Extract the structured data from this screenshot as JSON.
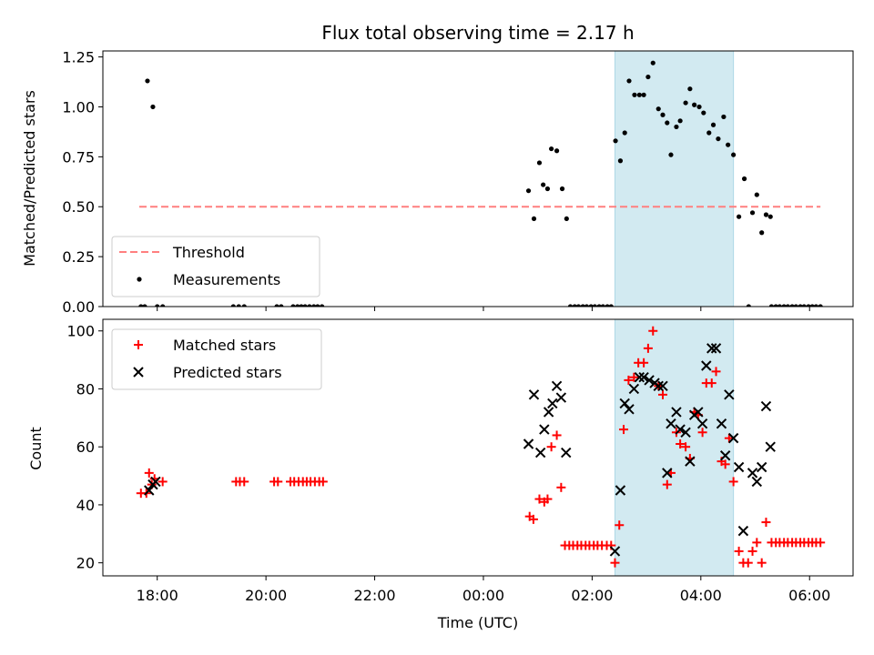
{
  "chart_data": [
    {
      "type": "scatter",
      "title": "Flux total observing time = 2.17 h",
      "xlabel": "",
      "ylabel": "Matched/Predicted stars",
      "xlim_hours": [
        17.0,
        30.8
      ],
      "ylim": [
        0,
        1.28
      ],
      "yticks": [
        "0.00",
        "0.25",
        "0.50",
        "0.75",
        "1.00",
        "1.25"
      ],
      "ytick_values": [
        0,
        0.25,
        0.5,
        0.75,
        1.0,
        1.25
      ],
      "highlight_span_hours": [
        26.42,
        28.6
      ],
      "highlight_color": "#add8e6",
      "legend_position": "lower left",
      "threshold": {
        "name": "Threshold",
        "value": 0.5,
        "x_range_hours": [
          17.67,
          30.2
        ],
        "color": "#ff7f7f",
        "style": "dashed"
      },
      "series": [
        {
          "name": "Measurements",
          "color": "#000000",
          "marker": "dot",
          "points": [
            [
              17.7,
              0
            ],
            [
              17.77,
              0
            ],
            [
              17.82,
              1.13
            ],
            [
              17.92,
              1.0
            ],
            [
              18.0,
              0
            ],
            [
              18.1,
              0
            ],
            [
              19.4,
              0
            ],
            [
              19.5,
              0
            ],
            [
              19.6,
              0
            ],
            [
              20.2,
              0
            ],
            [
              20.28,
              0
            ],
            [
              20.5,
              0
            ],
            [
              20.58,
              0
            ],
            [
              20.65,
              0
            ],
            [
              20.72,
              0
            ],
            [
              20.8,
              0
            ],
            [
              20.88,
              0
            ],
            [
              20.95,
              0
            ],
            [
              21.03,
              0
            ],
            [
              24.83,
              0.58
            ],
            [
              24.93,
              0.44
            ],
            [
              25.03,
              0.72
            ],
            [
              25.1,
              0.61
            ],
            [
              25.18,
              0.59
            ],
            [
              25.25,
              0.79
            ],
            [
              25.35,
              0.78
            ],
            [
              25.45,
              0.59
            ],
            [
              25.53,
              0.44
            ],
            [
              25.6,
              0
            ],
            [
              25.68,
              0
            ],
            [
              25.75,
              0
            ],
            [
              25.83,
              0
            ],
            [
              25.9,
              0
            ],
            [
              25.98,
              0
            ],
            [
              26.05,
              0
            ],
            [
              26.13,
              0
            ],
            [
              26.2,
              0
            ],
            [
              26.28,
              0
            ],
            [
              26.35,
              0
            ],
            [
              26.43,
              0.83
            ],
            [
              26.52,
              0.73
            ],
            [
              26.6,
              0.87
            ],
            [
              26.68,
              1.13
            ],
            [
              26.78,
              1.06
            ],
            [
              26.87,
              1.06
            ],
            [
              26.95,
              1.06
            ],
            [
              27.03,
              1.15
            ],
            [
              27.12,
              1.22
            ],
            [
              27.22,
              0.99
            ],
            [
              27.3,
              0.96
            ],
            [
              27.38,
              0.92
            ],
            [
              27.45,
              0.76
            ],
            [
              27.55,
              0.9
            ],
            [
              27.62,
              0.93
            ],
            [
              27.72,
              1.02
            ],
            [
              27.8,
              1.09
            ],
            [
              27.88,
              1.01
            ],
            [
              27.97,
              1.0
            ],
            [
              28.05,
              0.97
            ],
            [
              28.15,
              0.87
            ],
            [
              28.23,
              0.91
            ],
            [
              28.32,
              0.84
            ],
            [
              28.42,
              0.95
            ],
            [
              28.5,
              0.81
            ],
            [
              28.6,
              0.76
            ],
            [
              28.7,
              0.45
            ],
            [
              28.8,
              0.64
            ],
            [
              28.88,
              0
            ],
            [
              28.95,
              0.47
            ],
            [
              29.03,
              0.56
            ],
            [
              29.12,
              0.37
            ],
            [
              29.2,
              0.46
            ],
            [
              29.28,
              0.45
            ],
            [
              29.3,
              0
            ],
            [
              29.38,
              0
            ],
            [
              29.45,
              0
            ],
            [
              29.53,
              0
            ],
            [
              29.6,
              0
            ],
            [
              29.68,
              0
            ],
            [
              29.75,
              0
            ],
            [
              29.83,
              0
            ],
            [
              29.9,
              0
            ],
            [
              29.98,
              0
            ],
            [
              30.05,
              0
            ],
            [
              30.12,
              0
            ],
            [
              30.2,
              0
            ]
          ]
        }
      ],
      "legend": [
        "Threshold",
        "Measurements"
      ]
    },
    {
      "type": "scatter",
      "title": "",
      "xlabel": "Time (UTC)",
      "ylabel": "Count",
      "xlim_hours": [
        17.0,
        30.8
      ],
      "ylim": [
        15.5,
        104
      ],
      "yticks": [
        "20",
        "40",
        "60",
        "80",
        "100"
      ],
      "ytick_values": [
        20,
        40,
        60,
        80,
        100
      ],
      "xticks": [
        "18:00",
        "20:00",
        "22:00",
        "00:00",
        "02:00",
        "04:00",
        "06:00"
      ],
      "xtick_hours": [
        18,
        20,
        22,
        24,
        26,
        28,
        30
      ],
      "highlight_span_hours": [
        26.42,
        28.6
      ],
      "highlight_color": "#add8e6",
      "legend_position": "upper left",
      "series": [
        {
          "name": "Matched stars",
          "color": "#ff0000",
          "marker": "plus",
          "points": [
            [
              17.7,
              44
            ],
            [
              17.8,
              44
            ],
            [
              17.85,
              51
            ],
            [
              17.9,
              47
            ],
            [
              17.95,
              49
            ],
            [
              18.1,
              48
            ],
            [
              19.45,
              48
            ],
            [
              19.52,
              48
            ],
            [
              19.6,
              48
            ],
            [
              20.15,
              48
            ],
            [
              20.22,
              48
            ],
            [
              20.45,
              48
            ],
            [
              20.52,
              48
            ],
            [
              20.6,
              48
            ],
            [
              20.68,
              48
            ],
            [
              20.75,
              48
            ],
            [
              20.82,
              48
            ],
            [
              20.9,
              48
            ],
            [
              20.98,
              48
            ],
            [
              21.05,
              48
            ],
            [
              24.85,
              36
            ],
            [
              24.92,
              35
            ],
            [
              25.03,
              42
            ],
            [
              25.12,
              41
            ],
            [
              25.18,
              42
            ],
            [
              25.25,
              60
            ],
            [
              25.35,
              64
            ],
            [
              25.43,
              46
            ],
            [
              25.5,
              26
            ],
            [
              25.58,
              26
            ],
            [
              25.65,
              26
            ],
            [
              25.73,
              26
            ],
            [
              25.8,
              26
            ],
            [
              25.88,
              26
            ],
            [
              25.95,
              26
            ],
            [
              26.03,
              26
            ],
            [
              26.1,
              26
            ],
            [
              26.18,
              26
            ],
            [
              26.27,
              26
            ],
            [
              26.35,
              26
            ],
            [
              26.42,
              20
            ],
            [
              26.5,
              33
            ],
            [
              26.58,
              66
            ],
            [
              26.67,
              83
            ],
            [
              26.77,
              84
            ],
            [
              26.85,
              89
            ],
            [
              26.95,
              89
            ],
            [
              27.03,
              94
            ],
            [
              27.12,
              100
            ],
            [
              27.22,
              81
            ],
            [
              27.3,
              78
            ],
            [
              27.38,
              47
            ],
            [
              27.45,
              51
            ],
            [
              27.55,
              65
            ],
            [
              27.62,
              61
            ],
            [
              27.72,
              60
            ],
            [
              27.8,
              56
            ],
            [
              27.88,
              72
            ],
            [
              27.95,
              71
            ],
            [
              28.03,
              65
            ],
            [
              28.1,
              82
            ],
            [
              28.2,
              82
            ],
            [
              28.28,
              86
            ],
            [
              28.38,
              55
            ],
            [
              28.45,
              54
            ],
            [
              28.52,
              63
            ],
            [
              28.6,
              48
            ],
            [
              28.7,
              24
            ],
            [
              28.78,
              20
            ],
            [
              28.87,
              20
            ],
            [
              28.95,
              24
            ],
            [
              29.03,
              27
            ],
            [
              29.12,
              20
            ],
            [
              29.2,
              34
            ],
            [
              29.3,
              27
            ],
            [
              29.38,
              27
            ],
            [
              29.45,
              27
            ],
            [
              29.53,
              27
            ],
            [
              29.6,
              27
            ],
            [
              29.68,
              27
            ],
            [
              29.75,
              27
            ],
            [
              29.83,
              27
            ],
            [
              29.9,
              27
            ],
            [
              29.98,
              27
            ],
            [
              30.05,
              27
            ],
            [
              30.12,
              27
            ],
            [
              30.2,
              27
            ]
          ]
        },
        {
          "name": "Predicted stars",
          "color": "#000000",
          "marker": "x",
          "points": [
            [
              17.85,
              45
            ],
            [
              17.92,
              47
            ],
            [
              17.97,
              48
            ],
            [
              24.83,
              61
            ],
            [
              24.93,
              78
            ],
            [
              25.05,
              58
            ],
            [
              25.12,
              66
            ],
            [
              25.2,
              72
            ],
            [
              25.27,
              75
            ],
            [
              25.35,
              81
            ],
            [
              25.43,
              77
            ],
            [
              25.52,
              58
            ],
            [
              26.42,
              24
            ],
            [
              26.52,
              45
            ],
            [
              26.6,
              75
            ],
            [
              26.68,
              73
            ],
            [
              26.77,
              80
            ],
            [
              26.87,
              84
            ],
            [
              26.95,
              84
            ],
            [
              27.05,
              83
            ],
            [
              27.15,
              82
            ],
            [
              27.22,
              81
            ],
            [
              27.3,
              81
            ],
            [
              27.38,
              51
            ],
            [
              27.45,
              68
            ],
            [
              27.55,
              72
            ],
            [
              27.62,
              66
            ],
            [
              27.72,
              65
            ],
            [
              27.8,
              55
            ],
            [
              27.88,
              71
            ],
            [
              27.95,
              72
            ],
            [
              28.03,
              68
            ],
            [
              28.1,
              88
            ],
            [
              28.2,
              94
            ],
            [
              28.28,
              94
            ],
            [
              28.38,
              68
            ],
            [
              28.45,
              57
            ],
            [
              28.52,
              78
            ],
            [
              28.6,
              63
            ],
            [
              28.7,
              53
            ],
            [
              28.78,
              31
            ],
            [
              28.95,
              51
            ],
            [
              29.03,
              48
            ],
            [
              29.12,
              53
            ],
            [
              29.2,
              74
            ],
            [
              29.28,
              60
            ]
          ]
        }
      ],
      "legend": [
        "Matched stars",
        "Predicted stars"
      ]
    }
  ]
}
